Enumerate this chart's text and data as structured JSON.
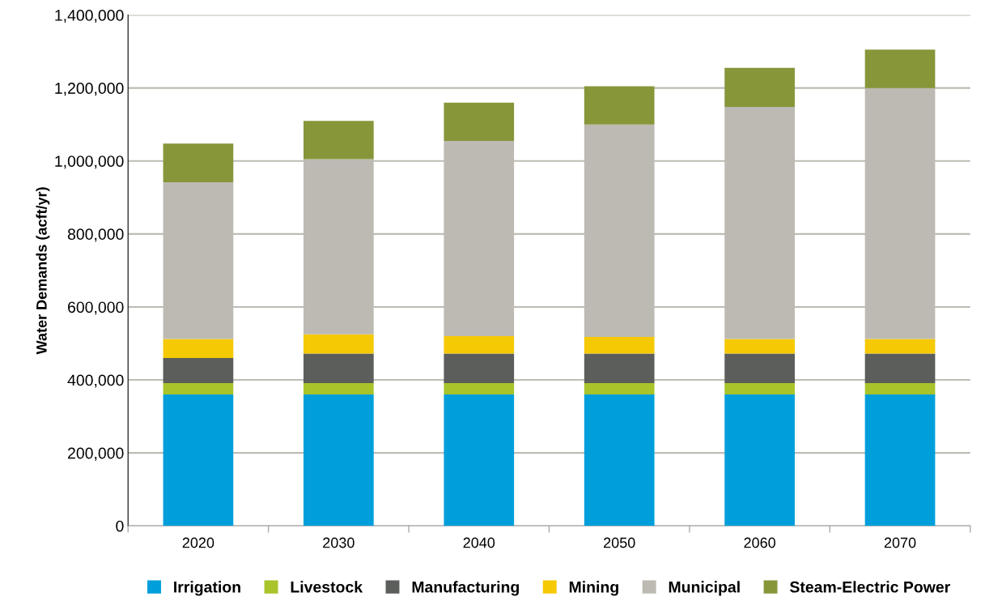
{
  "chart_data": {
    "type": "bar",
    "stacked": true,
    "ylabel": "Water Demands (acft/yr)",
    "categories": [
      "2020",
      "2030",
      "2040",
      "2050",
      "2060",
      "2070"
    ],
    "series": [
      {
        "name": "Irrigation",
        "color": "#009fdb",
        "values": [
          360000,
          360000,
          360000,
          360000,
          360000,
          360000
        ]
      },
      {
        "name": "Livestock",
        "color": "#a8c42a",
        "values": [
          31000,
          31000,
          31000,
          31000,
          31000,
          31000
        ]
      },
      {
        "name": "Manufacturing",
        "color": "#5b5e5b",
        "values": [
          69000,
          81000,
          81000,
          81000,
          81000,
          81000
        ]
      },
      {
        "name": "Mining",
        "color": "#f5c904",
        "values": [
          52000,
          53000,
          48000,
          46000,
          40000,
          40000
        ]
      },
      {
        "name": "Municipal",
        "color": "#bdbab3",
        "values": [
          430000,
          480000,
          535000,
          582000,
          636000,
          688000
        ]
      },
      {
        "name": "Steam-Electric Power",
        "color": "#88963a",
        "values": [
          106000,
          105000,
          105000,
          105000,
          107000,
          105000
        ]
      }
    ],
    "ylim": [
      0,
      1400000
    ],
    "yticks": [
      {
        "value": 0,
        "label": "0"
      },
      {
        "value": 200000,
        "label": "200,000"
      },
      {
        "value": 400000,
        "label": "400,000"
      },
      {
        "value": 600000,
        "label": "600,000"
      },
      {
        "value": 800000,
        "label": "800,000"
      },
      {
        "value": 1000000,
        "label": "1,000,000"
      },
      {
        "value": 1200000,
        "label": "1,200,000"
      },
      {
        "value": 1400000,
        "label": "1,400,000"
      }
    ],
    "grid": "y",
    "legend": "bottom"
  }
}
